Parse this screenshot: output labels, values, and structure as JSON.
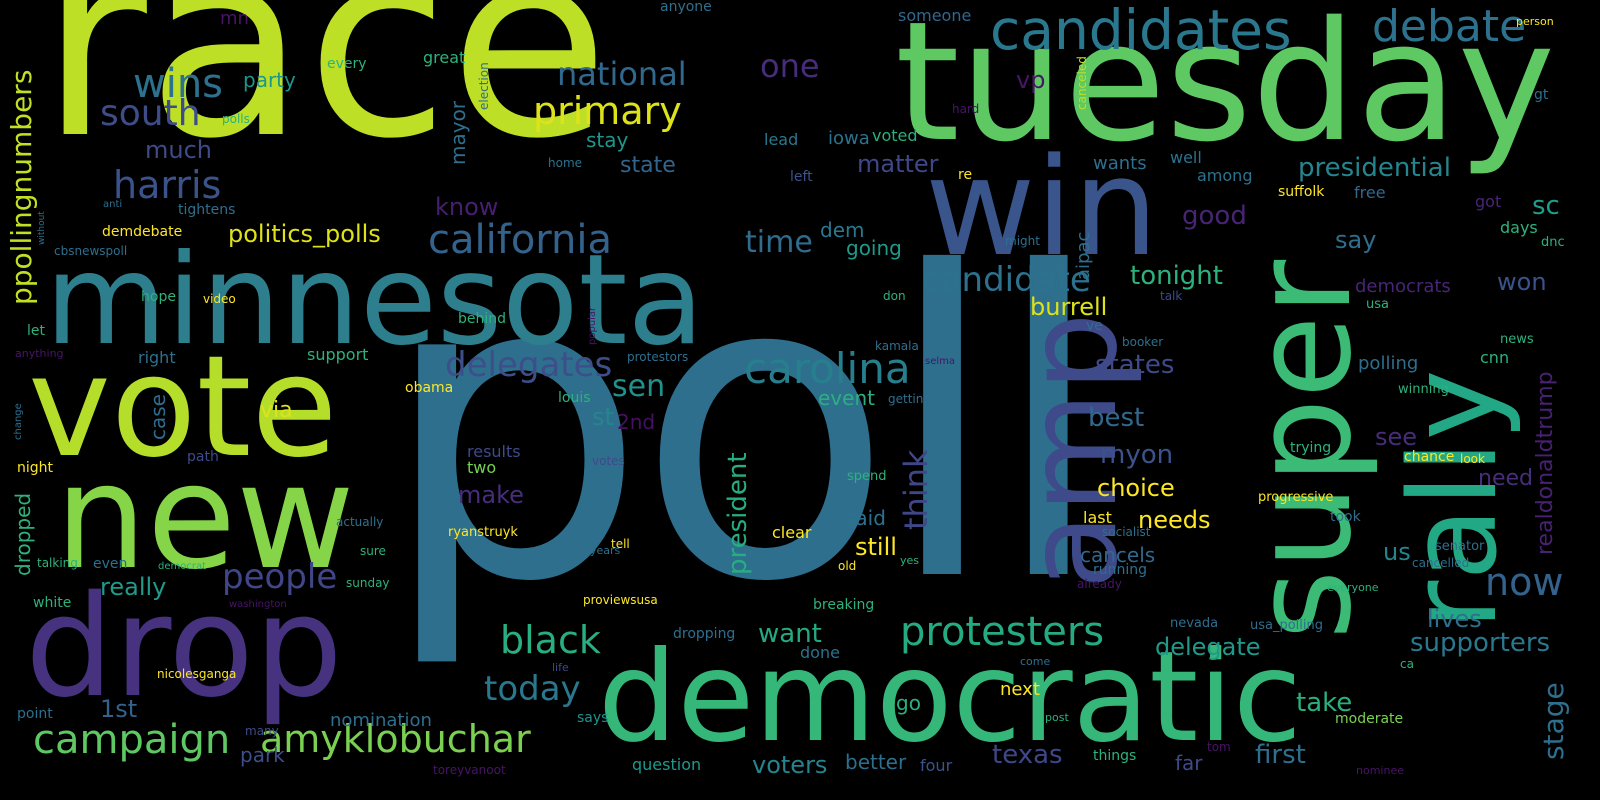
{
  "words": [
    {
      "text": "race",
      "color": "#bddf26"
    },
    {
      "text": "poll",
      "color": "#2e6f8e"
    },
    {
      "text": "tuesday",
      "color": "#5ec962"
    },
    {
      "text": "minnesota",
      "color": "#2e7f8e"
    },
    {
      "text": "vote",
      "color": "#b5de2b"
    },
    {
      "text": "win",
      "color": "#39558c"
    },
    {
      "text": "new",
      "color": "#86d549"
    },
    {
      "text": "drop",
      "color": "#46327e"
    },
    {
      "text": "democratic",
      "color": "#35b779"
    },
    {
      "text": "super",
      "color": "#3bbb75"
    },
    {
      "text": "rally",
      "color": "#22a884"
    },
    {
      "text": "amp",
      "color": "#3e4a89"
    },
    {
      "text": "candidates",
      "color": "#2a788e"
    },
    {
      "text": "debate",
      "color": "#2c728e"
    },
    {
      "text": "california",
      "color": "#33638d"
    },
    {
      "text": "carolina",
      "color": "#277f8e"
    },
    {
      "text": "protesters",
      "color": "#25ab82"
    },
    {
      "text": "amyklobuchar",
      "color": "#7ad151"
    },
    {
      "text": "campaign",
      "color": "#5ec962"
    },
    {
      "text": "primary",
      "color": "#dde318"
    },
    {
      "text": "wins",
      "color": "#2c728e"
    },
    {
      "text": "south",
      "color": "#3e4c8a"
    },
    {
      "text": "harris",
      "color": "#3b528b"
    },
    {
      "text": "black",
      "color": "#28ae80"
    },
    {
      "text": "today",
      "color": "#2a788e"
    },
    {
      "text": "people",
      "color": "#404688"
    },
    {
      "text": "delegates",
      "color": "#3d4e8a"
    },
    {
      "text": "candidate",
      "color": "#2c728e"
    },
    {
      "text": "national",
      "color": "#31688e"
    },
    {
      "text": "one",
      "color": "#472c7a"
    },
    {
      "text": "ppollingnumbers",
      "color": "#c2df23"
    },
    {
      "text": "now",
      "color": "#33638d"
    },
    {
      "text": "presidential",
      "color": "#25858e"
    },
    {
      "text": "politics_polls",
      "color": "#dde318"
    },
    {
      "text": "time",
      "color": "#2f6c8e"
    },
    {
      "text": "sen",
      "color": "#20928c"
    },
    {
      "text": "burrell",
      "color": "#dde318"
    },
    {
      "text": "tonight",
      "color": "#2db27d"
    },
    {
      "text": "states",
      "color": "#3e4a89"
    },
    {
      "text": "think",
      "color": "#3f4788"
    },
    {
      "text": "president",
      "color": "#27ad81"
    },
    {
      "text": "delegate",
      "color": "#1f998a"
    },
    {
      "text": "supporters",
      "color": "#2a788e"
    },
    {
      "text": "stage",
      "color": "#2e6e8e"
    },
    {
      "text": "realdonaldtrump",
      "color": "#482173"
    },
    {
      "text": "myon",
      "color": "#3b528b"
    },
    {
      "text": "choice",
      "color": "#fde725"
    },
    {
      "text": "still",
      "color": "#fde725"
    },
    {
      "text": "make",
      "color": "#472d7b"
    },
    {
      "text": "want",
      "color": "#24aa83"
    },
    {
      "text": "take",
      "color": "#2ab07f"
    },
    {
      "text": "texas",
      "color": "#3f4788"
    },
    {
      "text": "first",
      "color": "#2e6f8e"
    },
    {
      "text": "best",
      "color": "#31688e"
    },
    {
      "text": "needs",
      "color": "#fde725"
    },
    {
      "text": "say",
      "color": "#2e6e8e"
    },
    {
      "text": "sc",
      "color": "#1f9e89"
    },
    {
      "text": "won",
      "color": "#3a538b"
    },
    {
      "text": "good",
      "color": "#482475"
    },
    {
      "text": "matter",
      "color": "#3f4788"
    },
    {
      "text": "much",
      "color": "#3e4a89"
    },
    {
      "text": "1st",
      "color": "#33638d"
    },
    {
      "text": "really",
      "color": "#1e9b8a"
    },
    {
      "text": "st",
      "color": "#25858e"
    },
    {
      "text": "event",
      "color": "#2ab07f"
    },
    {
      "text": "lives",
      "color": "#2e6f8e"
    },
    {
      "text": "see",
      "color": "#472c7a"
    },
    {
      "text": "us",
      "color": "#25858e"
    },
    {
      "text": "need",
      "color": "#472d7b"
    },
    {
      "text": "know",
      "color": "#481f70"
    },
    {
      "text": "party",
      "color": "#1f968b"
    },
    {
      "text": "2nd",
      "color": "#471063"
    },
    {
      "text": "said",
      "color": "#2c728e"
    },
    {
      "text": "voters",
      "color": "#25848e"
    },
    {
      "text": "vp",
      "color": "#481467"
    },
    {
      "text": "mayor",
      "color": "#2e6f8e"
    },
    {
      "text": "via",
      "color": "#dde318"
    },
    {
      "text": "dem",
      "color": "#2a788e"
    },
    {
      "text": "going",
      "color": "#1f9a8a"
    },
    {
      "text": "stay",
      "color": "#1f968b"
    },
    {
      "text": "state",
      "color": "#32658e"
    },
    {
      "text": "case",
      "color": "#2f6c8e"
    },
    {
      "text": "dropped",
      "color": "#2db27d"
    },
    {
      "text": "two",
      "color": "#75d054"
    },
    {
      "text": "last",
      "color": "#fde725"
    },
    {
      "text": "cancels",
      "color": "#31688e"
    },
    {
      "text": "better",
      "color": "#2e6f8e"
    },
    {
      "text": "park",
      "color": "#3d4e8a"
    },
    {
      "text": "four",
      "color": "#3a538b"
    },
    {
      "text": "far",
      "color": "#3e4a89"
    },
    {
      "text": "go",
      "color": "#2ab07f"
    },
    {
      "text": "next",
      "color": "#fde725"
    },
    {
      "text": "done",
      "color": "#2c728e"
    },
    {
      "text": "question",
      "color": "#1f988b"
    },
    {
      "text": "nomination",
      "color": "#2e6f8e"
    },
    {
      "text": "says",
      "color": "#20928c"
    },
    {
      "text": "moderate",
      "color": "#7ad151"
    },
    {
      "text": "polling",
      "color": "#2e6e8e"
    },
    {
      "text": "democrats",
      "color": "#482576"
    },
    {
      "text": "days",
      "color": "#2db27d"
    },
    {
      "text": "got",
      "color": "#482576"
    },
    {
      "text": "free",
      "color": "#31688e"
    },
    {
      "text": "suffolk",
      "color": "#fde725"
    },
    {
      "text": "iowa",
      "color": "#2c728e"
    },
    {
      "text": "voted",
      "color": "#2ab07f"
    },
    {
      "text": "wants",
      "color": "#2e6f8e"
    },
    {
      "text": "well",
      "color": "#2c728e"
    },
    {
      "text": "among",
      "color": "#2c728e"
    },
    {
      "text": "aipac",
      "color": "#2e6f8e"
    },
    {
      "text": "lead",
      "color": "#2a788e"
    },
    {
      "text": "left",
      "color": "#3b528b"
    },
    {
      "text": "re",
      "color": "#fde725"
    },
    {
      "text": "someone",
      "color": "#31688e"
    },
    {
      "text": "anyone",
      "color": "#2e6f8e"
    },
    {
      "text": "great",
      "color": "#2db27d"
    },
    {
      "text": "every",
      "color": "#2db27d"
    },
    {
      "text": "mn",
      "color": "#481467"
    },
    {
      "text": "polls",
      "color": "#2db27d"
    },
    {
      "text": "demdebate",
      "color": "#fde725"
    },
    {
      "text": "tightens",
      "color": "#2e6f8e"
    },
    {
      "text": "home",
      "color": "#2c728e"
    },
    {
      "text": "election",
      "color": "#2e6f8e"
    },
    {
      "text": "canceled",
      "color": "#bddf26"
    },
    {
      "text": "hard",
      "color": "#481467"
    },
    {
      "text": "might",
      "color": "#2e6f8e"
    },
    {
      "text": "don",
      "color": "#2db27d"
    },
    {
      "text": "talk",
      "color": "#3e4a89"
    },
    {
      "text": "ve",
      "color": "#2e6f8e"
    },
    {
      "text": "booker",
      "color": "#2e6f8e"
    },
    {
      "text": "kamala",
      "color": "#2e6f8e"
    },
    {
      "text": "selma",
      "color": "#481467"
    },
    {
      "text": "getting",
      "color": "#2e6f8e"
    },
    {
      "text": "support",
      "color": "#2db27d"
    },
    {
      "text": "behind",
      "color": "#2db27d"
    },
    {
      "text": "protestors",
      "color": "#2e6f8e"
    },
    {
      "text": "obama",
      "color": "#fde725"
    },
    {
      "text": "louis",
      "color": "#2db27d"
    },
    {
      "text": "popular",
      "color": "#481467"
    },
    {
      "text": "right",
      "color": "#2e6f8e"
    },
    {
      "text": "video",
      "color": "#fde725"
    },
    {
      "text": "hope",
      "color": "#2db27d"
    },
    {
      "text": "let",
      "color": "#2db27d"
    },
    {
      "text": "anything",
      "color": "#481467"
    },
    {
      "text": "change",
      "color": "#2e6f8e"
    },
    {
      "text": "night",
      "color": "#fde725"
    },
    {
      "text": "path",
      "color": "#3e4a89"
    },
    {
      "text": "results",
      "color": "#3e4a89"
    },
    {
      "text": "votes",
      "color": "#3e4a89"
    },
    {
      "text": "trying",
      "color": "#2db27d"
    },
    {
      "text": "chance",
      "color": "#fde725"
    },
    {
      "text": "look",
      "color": "#fde725"
    },
    {
      "text": "progressive",
      "color": "#fde725"
    },
    {
      "text": "took",
      "color": "#2e6f8e"
    },
    {
      "text": "socialist",
      "color": "#2e6f8e"
    },
    {
      "text": "running",
      "color": "#2e6f8e"
    },
    {
      "text": "already",
      "color": "#481467"
    },
    {
      "text": "everyone",
      "color": "#2db27d"
    },
    {
      "text": "cancelled",
      "color": "#2e6f8e"
    },
    {
      "text": "senator",
      "color": "#2e6f8e"
    },
    {
      "text": "winning",
      "color": "#2db27d"
    },
    {
      "text": "cnn",
      "color": "#2db27d"
    },
    {
      "text": "news",
      "color": "#2db27d"
    },
    {
      "text": "usa",
      "color": "#2db27d"
    },
    {
      "text": "dnc",
      "color": "#2db27d"
    },
    {
      "text": "gt",
      "color": "#2e6f8e"
    },
    {
      "text": "person",
      "color": "#fde725"
    },
    {
      "text": "usa_polling",
      "color": "#2e6f8e"
    },
    {
      "text": "nevada",
      "color": "#2e6f8e"
    },
    {
      "text": "come",
      "color": "#2e6f8e"
    },
    {
      "text": "post",
      "color": "#2db27d"
    },
    {
      "text": "tom",
      "color": "#481467"
    },
    {
      "text": "things",
      "color": "#2db27d"
    },
    {
      "text": "nominee",
      "color": "#481467"
    },
    {
      "text": "ca",
      "color": "#2db27d"
    },
    {
      "text": "yes",
      "color": "#2db27d"
    },
    {
      "text": "old",
      "color": "#fde725"
    },
    {
      "text": "spend",
      "color": "#2db27d"
    },
    {
      "text": "clear",
      "color": "#fde725"
    },
    {
      "text": "tell",
      "color": "#fde725"
    },
    {
      "text": "years",
      "color": "#2e6f8e"
    },
    {
      "text": "proviewsusa",
      "color": "#fde725"
    },
    {
      "text": "ryanstruyk",
      "color": "#fde725"
    },
    {
      "text": "breaking",
      "color": "#2db27d"
    },
    {
      "text": "dropping",
      "color": "#2e6f8e"
    },
    {
      "text": "nicolesganga",
      "color": "#fde725"
    },
    {
      "text": "washington",
      "color": "#481467"
    },
    {
      "text": "sunday",
      "color": "#2db27d"
    },
    {
      "text": "actually",
      "color": "#2e6f8e"
    },
    {
      "text": "sure",
      "color": "#2db27d"
    },
    {
      "text": "even",
      "color": "#2e6f8e"
    },
    {
      "text": "talking",
      "color": "#2db27d"
    },
    {
      "text": "democrat",
      "color": "#2db27d"
    },
    {
      "text": "white",
      "color": "#2db27d"
    },
    {
      "text": "point",
      "color": "#2e6f8e"
    },
    {
      "text": "many",
      "color": "#3e4a89"
    },
    {
      "text": "life",
      "color": "#3e4a89"
    },
    {
      "text": "toreyvanoot",
      "color": "#481467"
    },
    {
      "text": "cbsnewspoll",
      "color": "#2e6f8e"
    },
    {
      "text": "anti",
      "color": "#2e6f8e"
    },
    {
      "text": "without",
      "color": "#2e6f8e"
    }
  ]
}
